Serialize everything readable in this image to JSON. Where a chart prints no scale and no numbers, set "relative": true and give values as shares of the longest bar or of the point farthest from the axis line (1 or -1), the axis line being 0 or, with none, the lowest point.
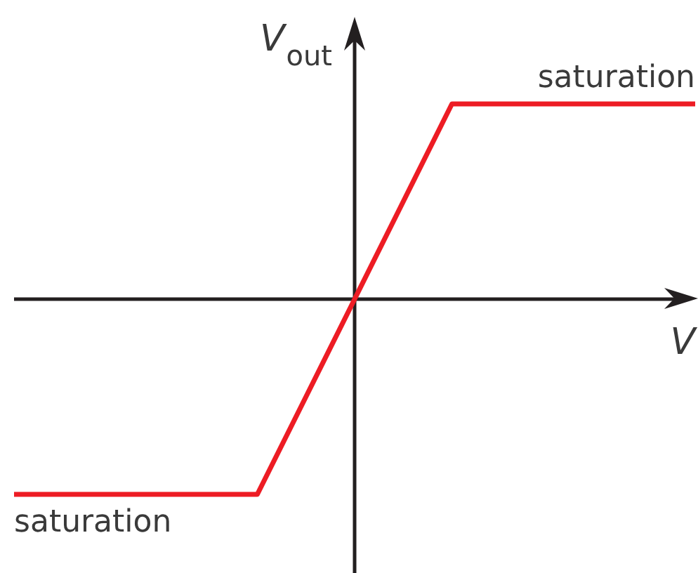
{
  "chart_data": {
    "type": "line",
    "xlabel": "V",
    "ylabel": "V$_{out}$",
    "relative": true,
    "tick_labels": false,
    "categories": [
      null,
      null,
      null,
      null,
      null,
      null,
      null,
      null,
      null,
      null,
      null,
      null,
      null,
      null,
      null
    ],
    "series": [
      {
        "color": "#ed1c24",
        "values": [
          -1,
          -1,
          -1,
          -1,
          -1,
          -1,
          -0.5,
          0,
          0.5,
          1,
          1,
          1,
          1,
          1,
          1
        ]
      }
    ],
    "annotations": [
      {
        "text": "saturation",
        "y": 1
      },
      {
        "text": "saturation",
        "y": -1
      }
    ]
  }
}
